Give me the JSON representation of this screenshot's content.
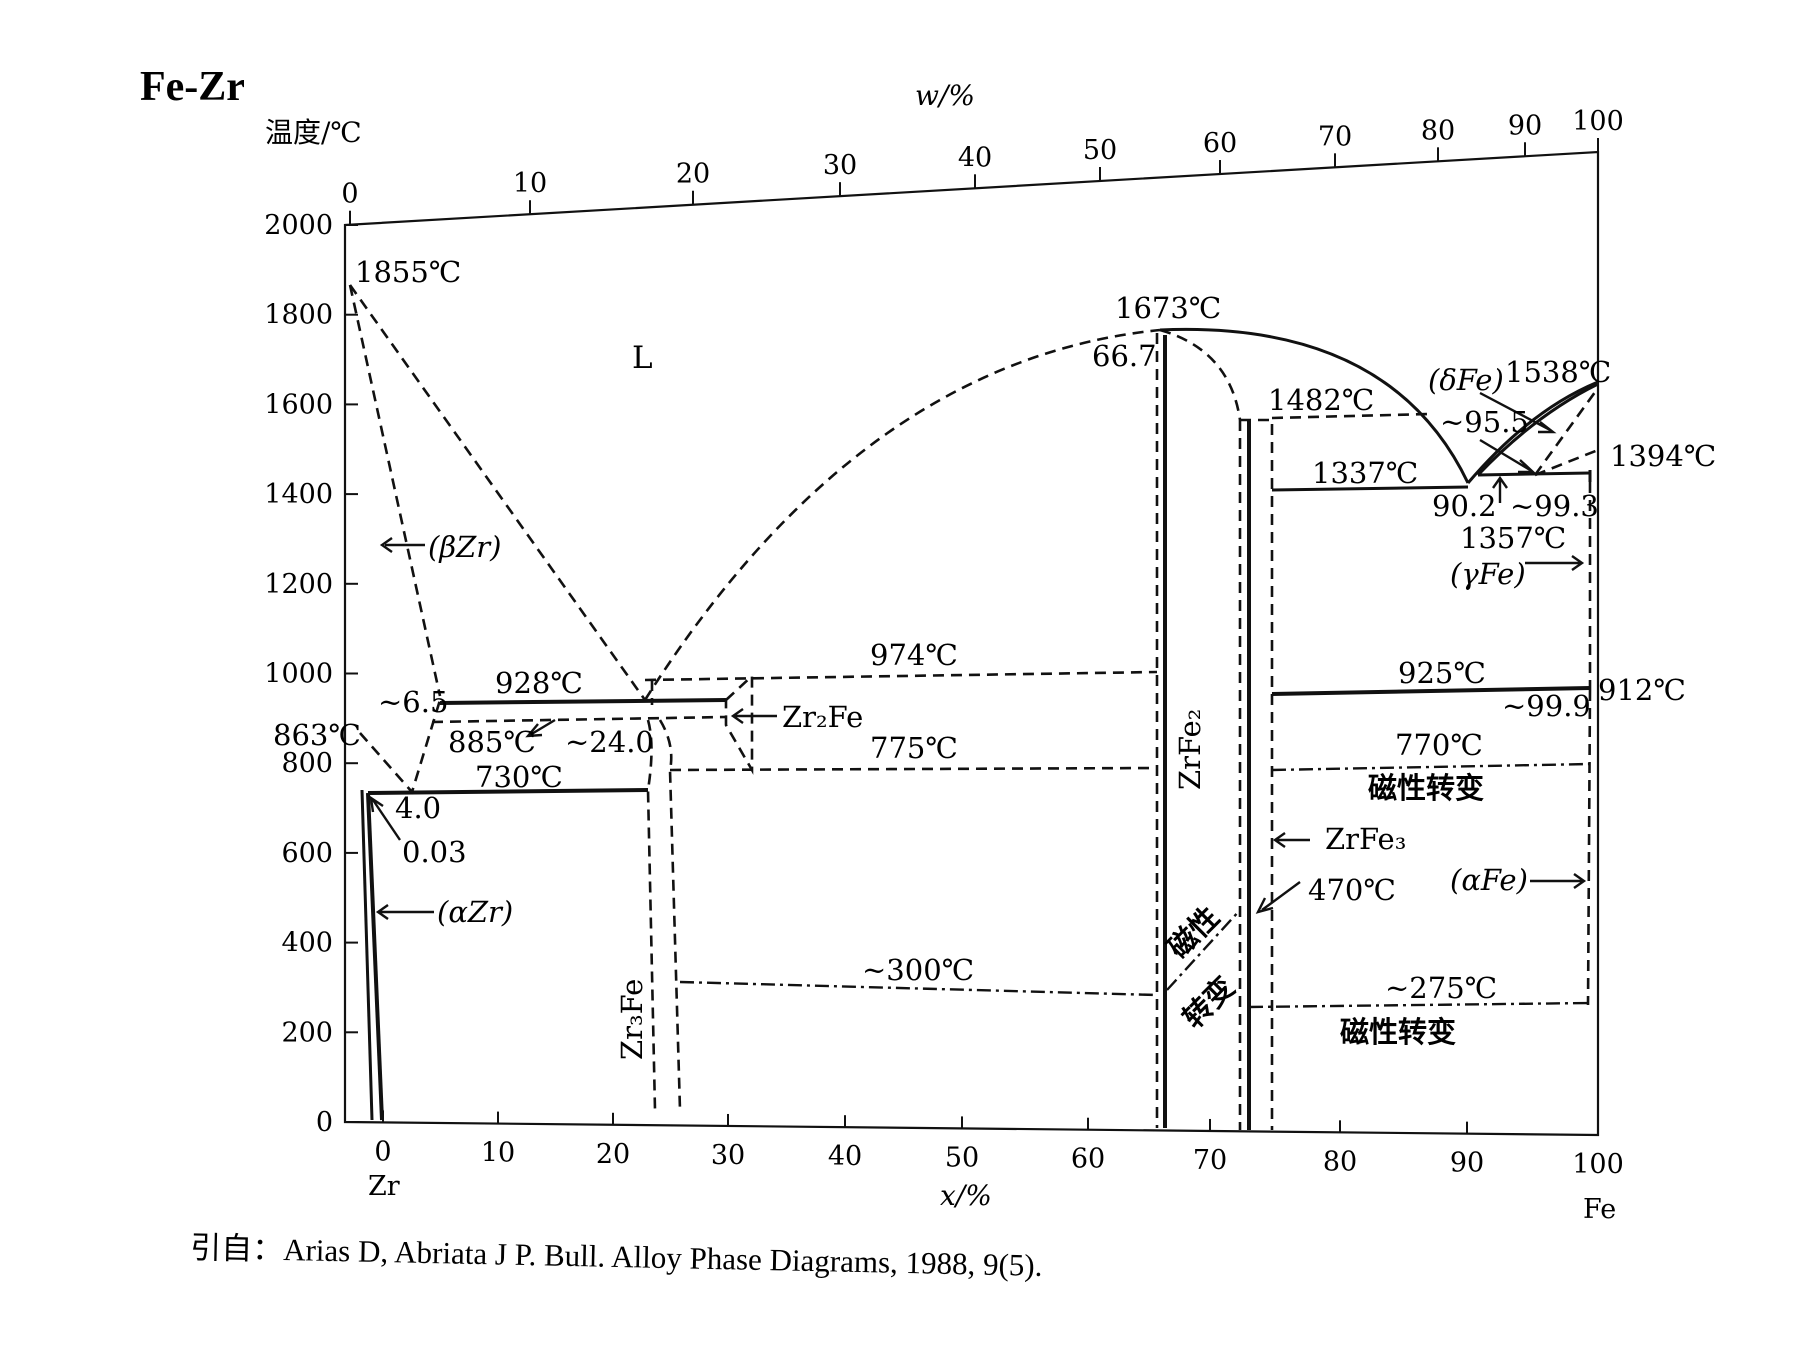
{
  "title": "Fe-Zr",
  "axes": {
    "y_title": "温度/℃",
    "x_top_title": "w/%",
    "x_bottom_title": "x/%",
    "y_ticks": [
      "0",
      "200",
      "400",
      "600",
      "800",
      "1000",
      "1200",
      "1400",
      "1600",
      "1800",
      "2000"
    ],
    "x_top_ticks": [
      "0",
      "10",
      "20",
      "30",
      "40",
      "50",
      "60",
      "70",
      "80",
      "90",
      "100"
    ],
    "x_bottom_ticks": [
      "0",
      "10",
      "20",
      "30",
      "40",
      "50",
      "60",
      "70",
      "80",
      "90",
      "100"
    ],
    "left_element": "Zr",
    "right_element": "Fe"
  },
  "labels": {
    "t1855": "1855℃",
    "liquid": "L",
    "t1673": "1673℃",
    "c667": "66.7",
    "t1482": "1482℃",
    "dfe": "(δFe)",
    "t1538": "1538℃",
    "c955": "~95.5",
    "t1394": "1394℃",
    "t1337": "1337℃",
    "c902": "90.2",
    "c993": "~99.3",
    "t1357": "1357℃",
    "gfe": "(γFe)",
    "bzr": "(βZr)",
    "t974": "974℃",
    "t928": "928℃",
    "c65": "~6.5",
    "zr2fe": "Zr₂Fe",
    "t925": "925℃",
    "t912": "912℃",
    "c999": "~99.9",
    "t863": "863℃",
    "t885": "885℃",
    "c240": "~24.0",
    "t775": "775℃",
    "t770": "770℃",
    "mag1": "磁性转变",
    "t730": "730℃",
    "c40": "4.0",
    "c003": "0.03",
    "zrfe2": "ZrFe₂",
    "zrfe3": "ZrFe₃",
    "azr": "(αZr)",
    "t470": "470℃",
    "afe": "(αFe)",
    "mag_a": "磁性",
    "mag_b": "转变",
    "t300": "~300℃",
    "t275": "~275℃",
    "mag2": "磁性转变",
    "zr3fe": "Zr₃Fe"
  },
  "citation": "引自：Arias D, Abriata J P. Bull. Alloy Phase Diagrams, 1988, 9(5)."
}
